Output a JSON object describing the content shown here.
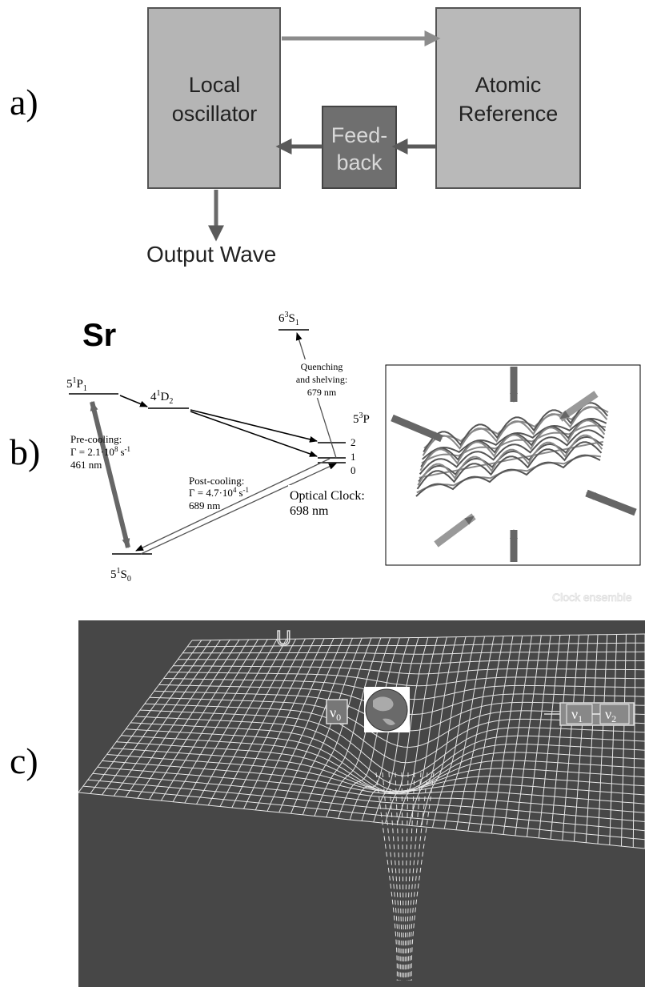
{
  "panel_a": {
    "label": "a)",
    "local_oscillator": [
      "Local",
      "oscillator"
    ],
    "atomic_reference": [
      "Atomic",
      "Reference"
    ],
    "feedback": [
      "Feed-",
      "back"
    ],
    "output": "Output Wave"
  },
  "panel_b": {
    "label": "b)",
    "element": "Sr",
    "levels": [
      {
        "n": "5",
        "s": "1",
        "l": "P",
        "j": "1"
      },
      {
        "n": "4",
        "s": "1",
        "l": "D",
        "j": "2"
      },
      {
        "n": "6",
        "s": "3",
        "l": "S",
        "j": "1"
      },
      {
        "n": "5",
        "s": "3",
        "l": "P"
      },
      {
        "n": "5",
        "s": "1",
        "l": "S",
        "j": "0"
      }
    ],
    "sublevels": [
      "2",
      "1",
      "0"
    ],
    "pre_cooling": {
      "title": "Pre-cooling:",
      "rate": {
        "base": "Γ = 2.1·10",
        "exp": "8",
        "unit": "s",
        "unit_exp": "-1"
      },
      "wavelength": "461 nm"
    },
    "post_cooling": {
      "title": "Post-cooling:",
      "rate": {
        "base": "Γ = 4.7·10",
        "exp": "4",
        "unit": "s",
        "unit_exp": "-1"
      },
      "wavelength": "689 nm"
    },
    "quenching": [
      "Quenching",
      "and shelving:",
      "679 nm"
    ],
    "clock": [
      "Optical Clock:",
      "698 nm"
    ]
  },
  "panel_c": {
    "label": "c)",
    "potential": "U",
    "nu0": {
      "symbol": "ν",
      "sub": "0"
    },
    "ensemble": "Clock ensemble",
    "nu1": {
      "symbol": "ν",
      "sub": "1"
    },
    "nu2": {
      "symbol": "ν",
      "sub": "2"
    }
  }
}
